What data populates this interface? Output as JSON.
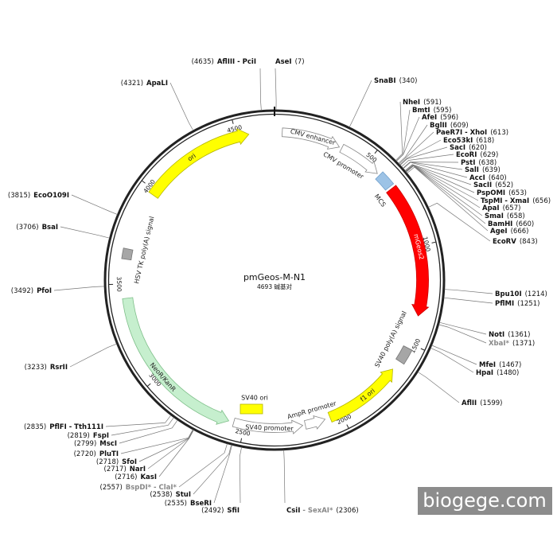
{
  "plasmid": {
    "name": "pmGeos-M-N1",
    "length": {
      "value": 4693,
      "label": "4693 碱基对"
    },
    "ticks": [
      500,
      1000,
      1500,
      2000,
      2500,
      3000,
      3500,
      4000,
      4500
    ],
    "features": [
      {
        "label": "CMV enhancer"
      },
      {
        "label": "CMV promoter"
      },
      {
        "label": "MCS"
      },
      {
        "label": "mGeos2"
      },
      {
        "label": "SV40 poly(A) signal"
      },
      {
        "label": "f1 ori"
      },
      {
        "label": "AmpR promoter"
      },
      {
        "label": "SV40 promoter"
      },
      {
        "label": "NeoR/KanR"
      },
      {
        "label": "HSV TK poly(A) signal"
      },
      {
        "label": "ori"
      },
      {
        "label": "SV40 ori"
      }
    ],
    "sites": [
      {
        "name": "AseI",
        "pos": {
          "value": 7,
          "label": "(7)"
        }
      },
      {
        "name": "SnaBI",
        "pos": {
          "value": 340,
          "label": "(340)"
        }
      },
      {
        "name": "NheI",
        "pos": {
          "value": 591,
          "label": "(591)"
        }
      },
      {
        "name": "BmtI",
        "pos": {
          "value": 595,
          "label": "(595)"
        }
      },
      {
        "name": "AfeI",
        "pos": {
          "value": 596,
          "label": "(596)"
        }
      },
      {
        "name": "BglII",
        "pos": {
          "value": 609,
          "label": "(609)"
        }
      },
      {
        "name": "PaeR7I - XhoI",
        "pos": {
          "value": 613,
          "label": "(613)"
        }
      },
      {
        "name": "Eco53kI",
        "pos": {
          "value": 618,
          "label": "(618)"
        }
      },
      {
        "name": "SacI",
        "pos": {
          "value": 620,
          "label": "(620)"
        }
      },
      {
        "name": "EcoRI",
        "pos": {
          "value": 629,
          "label": "(629)"
        }
      },
      {
        "name": "PstI",
        "pos": {
          "value": 638,
          "label": "(638)"
        }
      },
      {
        "name": "SalI",
        "pos": {
          "value": 639,
          "label": "(639)"
        }
      },
      {
        "name": "AccI",
        "pos": {
          "value": 640,
          "label": "(640)"
        }
      },
      {
        "name": "SacII",
        "pos": {
          "value": 652,
          "label": "(652)"
        }
      },
      {
        "name": "PspOMI",
        "pos": {
          "value": 653,
          "label": "(653)"
        }
      },
      {
        "name": "TspMI - XmaI",
        "pos": {
          "value": 656,
          "label": "(656)"
        }
      },
      {
        "name": "ApaI",
        "pos": {
          "value": 657,
          "label": "(657)"
        }
      },
      {
        "name": "SmaI",
        "pos": {
          "value": 658,
          "label": "(658)"
        }
      },
      {
        "name": "BamHI",
        "pos": {
          "value": 660,
          "label": "(660)"
        }
      },
      {
        "name": "AgeI",
        "pos": {
          "value": 666,
          "label": "(666)"
        }
      },
      {
        "name": "EcoRV",
        "pos": {
          "value": 843,
          "label": "(843)"
        }
      },
      {
        "name": "Bpu10I",
        "pos": {
          "value": 1214,
          "label": "(1214)"
        }
      },
      {
        "name": "PflMI",
        "pos": {
          "value": 1251,
          "label": "(1251)"
        }
      },
      {
        "name": "NotI",
        "pos": {
          "value": 1361,
          "label": "(1361)"
        }
      },
      {
        "name": "XbaI*",
        "pos": {
          "value": 1371,
          "label": "(1371)"
        },
        "color": "#888888"
      },
      {
        "name": "MfeI",
        "pos": {
          "value": 1467,
          "label": "(1467)"
        }
      },
      {
        "name": "HpaI",
        "pos": {
          "value": 1480,
          "label": "(1480)"
        }
      },
      {
        "name": "AflII",
        "pos": {
          "value": 1599,
          "label": "(1599)"
        }
      },
      {
        "name": "CsiI",
        "also": "- SexAI*",
        "also_color": "#888888",
        "pos": {
          "value": 2306,
          "label": "(2306)"
        }
      },
      {
        "name": "SfiI",
        "pos": {
          "value": 2492,
          "label": "(2492)"
        }
      },
      {
        "name": "BseRI",
        "pos": {
          "value": 2535,
          "label": "(2535)"
        }
      },
      {
        "name": "StuI",
        "pos": {
          "value": 2538,
          "label": "(2538)"
        }
      },
      {
        "name": "BspDI* - ClaI*",
        "pos": {
          "value": 2557,
          "label": "(2557)"
        },
        "color": "#888888"
      },
      {
        "name": "KasI",
        "pos": {
          "value": 2716,
          "label": "(2716)"
        }
      },
      {
        "name": "NarI",
        "pos": {
          "value": 2717,
          "label": "(2717)"
        }
      },
      {
        "name": "SfoI",
        "pos": {
          "value": 2718,
          "label": "(2718)"
        }
      },
      {
        "name": "PluTI",
        "pos": {
          "value": 2720,
          "label": "(2720)"
        }
      },
      {
        "name": "MscI",
        "pos": {
          "value": 2799,
          "label": "(2799)"
        }
      },
      {
        "name": "FspI",
        "pos": {
          "value": 2819,
          "label": "(2819)"
        }
      },
      {
        "name": "PflFI - Tth111I",
        "pos": {
          "value": 2835,
          "label": "(2835)"
        }
      },
      {
        "name": "RsrII",
        "pos": {
          "value": 3233,
          "label": "(3233)"
        }
      },
      {
        "name": "PfoI",
        "pos": {
          "value": 3492,
          "label": "(3492)"
        }
      },
      {
        "name": "BsaI",
        "pos": {
          "value": 3706,
          "label": "(3706)"
        }
      },
      {
        "name": "EcoO109I",
        "pos": {
          "value": 3815,
          "label": "(3815)"
        }
      },
      {
        "name": "ApaLI",
        "pos": {
          "value": 4321,
          "label": "(4321)"
        }
      },
      {
        "name": "AflIII - PciI",
        "pos": {
          "value": 4635,
          "label": "(4635)"
        }
      }
    ]
  },
  "watermark": "biogege.com"
}
